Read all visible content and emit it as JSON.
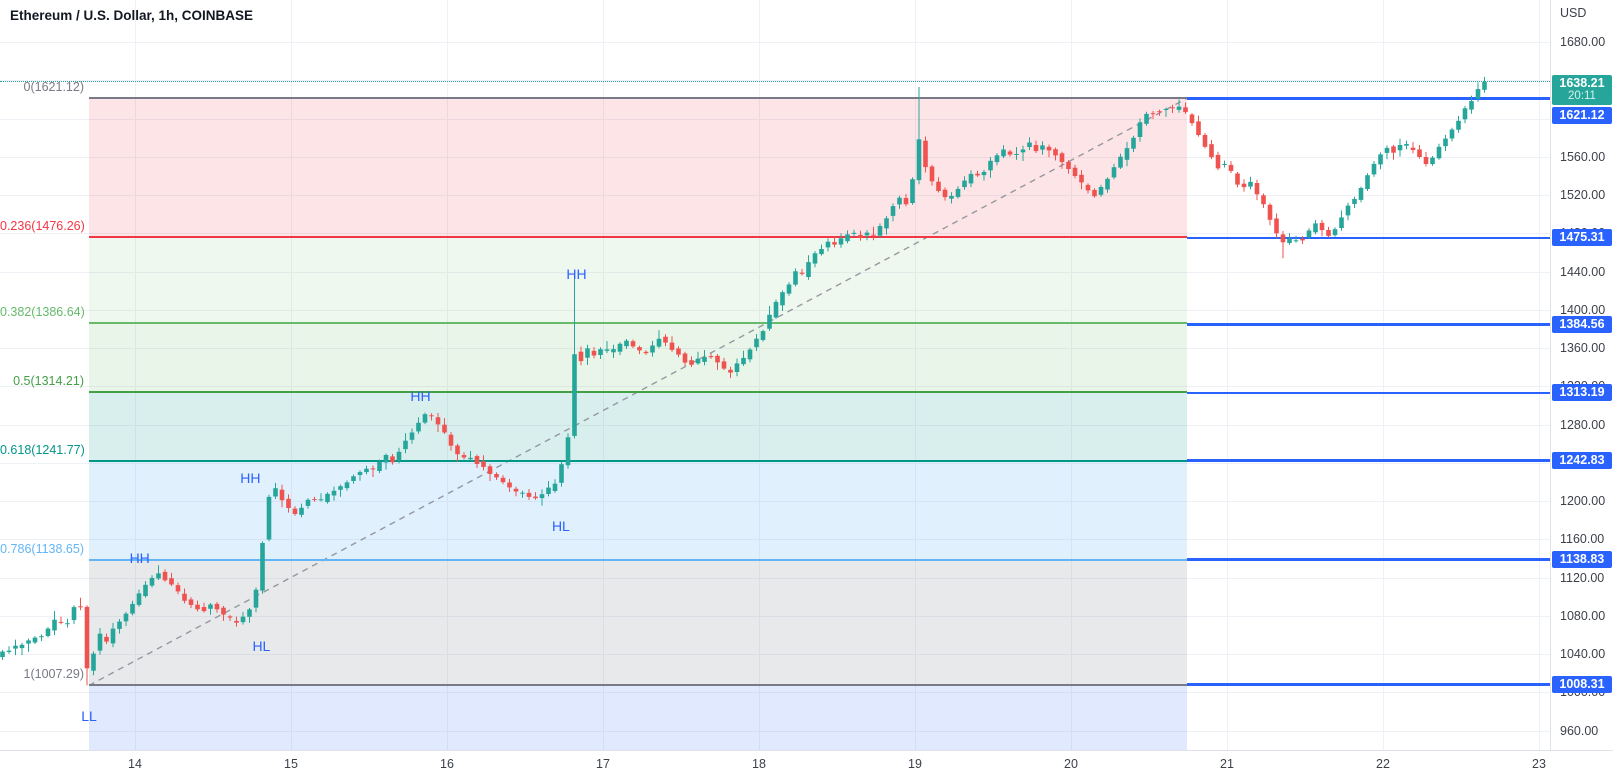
{
  "header": {
    "title": "Ethereum / U.S. Dollar, 1h, COINBASE"
  },
  "price_axis": {
    "currency_label": "USD",
    "ticks": [
      1680,
      1640,
      1600,
      1560,
      1520,
      1480,
      1440,
      1400,
      1360,
      1320,
      1280,
      1240,
      1200,
      1160,
      1120,
      1080,
      1040,
      1000,
      960
    ]
  },
  "time_axis": {
    "days": [
      14,
      15,
      16,
      17,
      18,
      19,
      20,
      21,
      22,
      23
    ]
  },
  "colors": {
    "up": "#26a69a",
    "down": "#ef5350",
    "ray_blue": "#2962ff",
    "badge_blue": "#2962ff",
    "badge_green": "#26a69a",
    "last_price_line": "#26a69a",
    "trendline": "#9598a1",
    "grid": "#eef1f6",
    "swing_label": "#2962ff",
    "title_text": "#131722",
    "axis_text": "#3c4049"
  },
  "chart_data": {
    "type": "candlestick",
    "title": "Ethereum / U.S. Dollar, 1h, COINBASE",
    "interval": "1h",
    "exchange": "COINBASE",
    "price_range_visible": [
      940,
      1724
    ],
    "days_visible": [
      13.1,
      23.0
    ],
    "last_price": {
      "value": 1638.21,
      "display": "1638.21",
      "countdown": "20:11"
    },
    "fib_retracement": {
      "start": {
        "t": 13.705,
        "price": 1007.29
      },
      "end": {
        "t": 20.744,
        "price": 1621.12
      },
      "levels": [
        {
          "ratio": 0,
          "price": 1621.12,
          "color": "#787b86"
        },
        {
          "ratio": 0.236,
          "price": 1476.26,
          "color": "#f23645"
        },
        {
          "ratio": 0.382,
          "price": 1386.64,
          "color": "#66bb6a"
        },
        {
          "ratio": 0.5,
          "price": 1314.21,
          "color": "#43a047"
        },
        {
          "ratio": 0.618,
          "price": 1241.77,
          "color": "#009688"
        },
        {
          "ratio": 0.786,
          "price": 1138.65,
          "color": "#64b5f6"
        },
        {
          "ratio": 1,
          "price": 1007.29,
          "color": "#787b86"
        }
      ],
      "band_colors": [
        "rgba(242,54,69,0.13)",
        "rgba(76,175,80,0.09)",
        "rgba(76,175,80,0.13)",
        "rgba(0,150,136,0.15)",
        "rgba(100,181,246,0.20)",
        "rgba(120,123,134,0.17)",
        "rgba(41,98,255,0.14)"
      ]
    },
    "horizontal_rays": {
      "start_t": 20.744,
      "prices": [
        1621.12,
        1475.31,
        1384.56,
        1313.19,
        1242.83,
        1138.83,
        1008.31
      ]
    },
    "swing_labels": [
      {
        "text": "LL",
        "t": 13.705,
        "price": 975.3
      },
      {
        "text": "HH",
        "t": 14.03,
        "price": 1140.5
      },
      {
        "text": "HL",
        "t": 14.81,
        "price": 1048.5
      },
      {
        "text": "HH",
        "t": 14.74,
        "price": 1224.1
      },
      {
        "text": "HH",
        "t": 15.83,
        "price": 1309.9
      },
      {
        "text": "HL",
        "t": 16.73,
        "price": 1174.0
      },
      {
        "text": "HH",
        "t": 16.83,
        "price": 1437.4
      }
    ],
    "anchors": [
      [
        13.13,
        1038
      ],
      [
        13.3,
        1050
      ],
      [
        13.44,
        1062
      ],
      [
        13.52,
        1078
      ],
      [
        13.57,
        1068
      ],
      [
        13.63,
        1088
      ],
      [
        13.69,
        1090
      ],
      [
        13.71,
        1022
      ],
      [
        13.74,
        1034
      ],
      [
        13.79,
        1062
      ],
      [
        13.83,
        1050
      ],
      [
        13.89,
        1068
      ],
      [
        13.96,
        1082
      ],
      [
        14.03,
        1098
      ],
      [
        14.11,
        1116
      ],
      [
        14.17,
        1126
      ],
      [
        14.24,
        1114
      ],
      [
        14.32,
        1100
      ],
      [
        14.4,
        1090
      ],
      [
        14.47,
        1086
      ],
      [
        14.52,
        1093
      ],
      [
        14.6,
        1079
      ],
      [
        14.67,
        1073
      ],
      [
        14.74,
        1082
      ],
      [
        14.79,
        1098
      ],
      [
        14.84,
        1160
      ],
      [
        14.88,
        1206
      ],
      [
        14.92,
        1212
      ],
      [
        14.98,
        1196
      ],
      [
        15.05,
        1187
      ],
      [
        15.1,
        1196
      ],
      [
        15.15,
        1203
      ],
      [
        15.2,
        1198
      ],
      [
        15.25,
        1206
      ],
      [
        15.31,
        1212
      ],
      [
        15.38,
        1220
      ],
      [
        15.44,
        1228
      ],
      [
        15.49,
        1235
      ],
      [
        15.54,
        1230
      ],
      [
        15.58,
        1240
      ],
      [
        15.62,
        1248
      ],
      [
        15.67,
        1242
      ],
      [
        15.71,
        1252
      ],
      [
        15.76,
        1264
      ],
      [
        15.81,
        1277
      ],
      [
        15.86,
        1287
      ],
      [
        15.9,
        1292
      ],
      [
        15.94,
        1284
      ],
      [
        15.99,
        1276
      ],
      [
        16.03,
        1262
      ],
      [
        16.07,
        1250
      ],
      [
        16.12,
        1243
      ],
      [
        16.16,
        1249
      ],
      [
        16.21,
        1241
      ],
      [
        16.26,
        1234
      ],
      [
        16.31,
        1227
      ],
      [
        16.37,
        1220
      ],
      [
        16.42,
        1214
      ],
      [
        16.47,
        1210
      ],
      [
        16.52,
        1206
      ],
      [
        16.57,
        1203
      ],
      [
        16.62,
        1206
      ],
      [
        16.67,
        1212
      ],
      [
        16.72,
        1220
      ],
      [
        16.76,
        1242
      ],
      [
        16.8,
        1270
      ],
      [
        16.84,
        1358
      ],
      [
        16.88,
        1348
      ],
      [
        16.92,
        1358
      ],
      [
        16.97,
        1352
      ],
      [
        17.02,
        1360
      ],
      [
        17.07,
        1355
      ],
      [
        17.12,
        1362
      ],
      [
        17.17,
        1368
      ],
      [
        17.22,
        1359
      ],
      [
        17.28,
        1354
      ],
      [
        17.33,
        1362
      ],
      [
        17.38,
        1370
      ],
      [
        17.43,
        1366
      ],
      [
        17.48,
        1357
      ],
      [
        17.53,
        1349
      ],
      [
        17.58,
        1342
      ],
      [
        17.63,
        1347
      ],
      [
        17.69,
        1355
      ],
      [
        17.74,
        1347
      ],
      [
        17.79,
        1338
      ],
      [
        17.84,
        1334
      ],
      [
        17.89,
        1344
      ],
      [
        17.94,
        1354
      ],
      [
        17.99,
        1365
      ],
      [
        18.05,
        1380
      ],
      [
        18.1,
        1397
      ],
      [
        18.15,
        1413
      ],
      [
        18.2,
        1424
      ],
      [
        18.25,
        1440
      ],
      [
        18.3,
        1436
      ],
      [
        18.35,
        1452
      ],
      [
        18.4,
        1462
      ],
      [
        18.46,
        1470
      ],
      [
        18.51,
        1467
      ],
      [
        18.56,
        1476
      ],
      [
        18.61,
        1482
      ],
      [
        18.66,
        1475
      ],
      [
        18.71,
        1480
      ],
      [
        18.76,
        1476
      ],
      [
        18.81,
        1490
      ],
      [
        18.87,
        1506
      ],
      [
        18.92,
        1518
      ],
      [
        18.96,
        1510
      ],
      [
        19.0,
        1526
      ],
      [
        19.03,
        1592
      ],
      [
        19.07,
        1558
      ],
      [
        19.11,
        1543
      ],
      [
        19.15,
        1528
      ],
      [
        19.19,
        1520
      ],
      [
        19.24,
        1516
      ],
      [
        19.29,
        1526
      ],
      [
        19.34,
        1534
      ],
      [
        19.39,
        1543
      ],
      [
        19.44,
        1540
      ],
      [
        19.49,
        1552
      ],
      [
        19.55,
        1562
      ],
      [
        19.6,
        1568
      ],
      [
        19.65,
        1560
      ],
      [
        19.7,
        1568
      ],
      [
        19.75,
        1574
      ],
      [
        19.8,
        1567
      ],
      [
        19.85,
        1574
      ],
      [
        19.9,
        1565
      ],
      [
        19.96,
        1556
      ],
      [
        20.01,
        1548
      ],
      [
        20.06,
        1538
      ],
      [
        20.11,
        1528
      ],
      [
        20.16,
        1518
      ],
      [
        20.21,
        1526
      ],
      [
        20.26,
        1540
      ],
      [
        20.31,
        1553
      ],
      [
        20.37,
        1564
      ],
      [
        20.42,
        1580
      ],
      [
        20.47,
        1598
      ],
      [
        20.52,
        1610
      ],
      [
        20.56,
        1604
      ],
      [
        20.61,
        1612
      ],
      [
        20.66,
        1607
      ],
      [
        20.7,
        1614
      ],
      [
        20.74,
        1610
      ],
      [
        20.78,
        1600
      ],
      [
        20.83,
        1586
      ],
      [
        20.88,
        1572
      ],
      [
        20.93,
        1558
      ],
      [
        20.97,
        1548
      ],
      [
        21.01,
        1554
      ],
      [
        21.06,
        1540
      ],
      [
        21.11,
        1525
      ],
      [
        21.16,
        1535
      ],
      [
        21.2,
        1524
      ],
      [
        21.25,
        1512
      ],
      [
        21.3,
        1494
      ],
      [
        21.35,
        1475
      ],
      [
        21.39,
        1468
      ],
      [
        21.44,
        1476
      ],
      [
        21.49,
        1472
      ],
      [
        21.55,
        1482
      ],
      [
        21.6,
        1492
      ],
      [
        21.63,
        1483
      ],
      [
        21.69,
        1476
      ],
      [
        21.74,
        1493
      ],
      [
        21.79,
        1508
      ],
      [
        21.84,
        1517
      ],
      [
        21.89,
        1530
      ],
      [
        21.94,
        1546
      ],
      [
        21.99,
        1560
      ],
      [
        22.05,
        1570
      ],
      [
        22.1,
        1565
      ],
      [
        22.15,
        1574
      ],
      [
        22.2,
        1568
      ],
      [
        22.25,
        1560
      ],
      [
        22.3,
        1552
      ],
      [
        22.35,
        1562
      ],
      [
        22.4,
        1575
      ],
      [
        22.46,
        1588
      ],
      [
        22.51,
        1600
      ],
      [
        22.56,
        1612
      ],
      [
        22.61,
        1626
      ],
      [
        22.67,
        1638.21
      ]
    ],
    "spikes": [
      {
        "t": 13.65,
        "high": 1099
      },
      {
        "t": 13.695,
        "low": 1007.29
      },
      {
        "t": 14.15,
        "high": 1133
      },
      {
        "t": 14.9,
        "high": 1219
      },
      {
        "t": 16.82,
        "high": 1437
      },
      {
        "t": 19.025,
        "high": 1633
      },
      {
        "t": 20.7,
        "high": 1620
      },
      {
        "t": 21.36,
        "low": 1454
      },
      {
        "t": 22.655,
        "high": 1643.5
      }
    ]
  }
}
